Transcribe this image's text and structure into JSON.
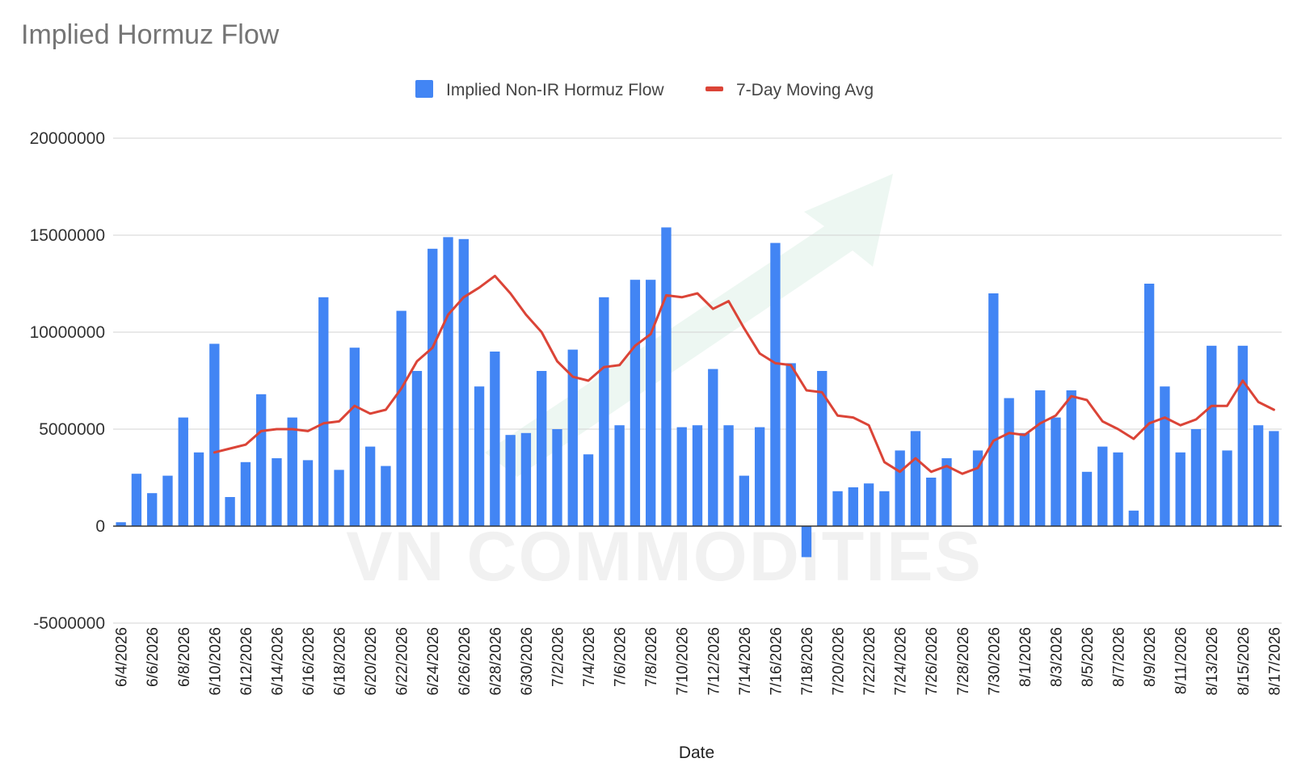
{
  "chart_data": {
    "type": "bar",
    "title": "Implied Hormuz Flow",
    "xlabel": "Date",
    "ylabel": "",
    "ylim": [
      -5000000,
      20000000
    ],
    "yticks": [
      -5000000,
      0,
      5000000,
      10000000,
      15000000,
      20000000
    ],
    "yticklabels": [
      "-5000000",
      "0",
      "5000000",
      "10000000",
      "15000000",
      "20000000"
    ],
    "grid": true,
    "legend_position": "top-center",
    "watermark": "VN COMMODITIES",
    "categories": [
      "6/4/2026",
      "6/5/2026",
      "6/6/2026",
      "6/7/2026",
      "6/8/2026",
      "6/9/2026",
      "6/10/2026",
      "6/11/2026",
      "6/12/2026",
      "6/13/2026",
      "6/14/2026",
      "6/15/2026",
      "6/16/2026",
      "6/17/2026",
      "6/18/2026",
      "6/19/2026",
      "6/20/2026",
      "6/21/2026",
      "6/22/2026",
      "6/23/2026",
      "6/24/2026",
      "6/25/2026",
      "6/26/2026",
      "6/27/2026",
      "6/28/2026",
      "6/29/2026",
      "6/30/2026",
      "7/1/2026",
      "7/2/2026",
      "7/3/2026",
      "7/4/2026",
      "7/5/2026",
      "7/6/2026",
      "7/7/2026",
      "7/8/2026",
      "7/9/2026",
      "7/10/2026",
      "7/11/2026",
      "7/12/2026",
      "7/13/2026",
      "7/14/2026",
      "7/15/2026",
      "7/16/2026",
      "7/17/2026",
      "7/18/2026",
      "7/19/2026",
      "7/20/2026",
      "7/21/2026",
      "7/22/2026",
      "7/23/2026",
      "7/24/2026",
      "7/25/2026",
      "7/26/2026",
      "7/27/2026",
      "7/28/2026",
      "7/29/2026",
      "7/30/2026",
      "7/31/2026",
      "8/1/2026",
      "8/2/2026",
      "8/3/2026",
      "8/4/2026",
      "8/5/2026",
      "8/6/2026",
      "8/7/2026",
      "8/8/2026",
      "8/9/2026",
      "8/10/2026",
      "8/11/2026",
      "8/12/2026",
      "8/13/2026",
      "8/14/2026",
      "8/15/2026",
      "8/16/2026",
      "8/17/2026"
    ],
    "x_tick_labels": [
      "6/4/2026",
      "6/6/2026",
      "6/8/2026",
      "6/10/2026",
      "6/12/2026",
      "6/14/2026",
      "6/16/2026",
      "6/18/2026",
      "6/20/2026",
      "6/22/2026",
      "6/24/2026",
      "6/26/2026",
      "6/28/2026",
      "6/30/2026",
      "7/2/2026",
      "7/4/2026",
      "7/6/2026",
      "7/8/2026",
      "7/10/2026",
      "7/12/2026",
      "7/14/2026",
      "7/16/2026",
      "7/18/2026",
      "7/20/2026",
      "7/22/2026",
      "7/24/2026",
      "7/26/2026",
      "7/28/2026",
      "7/30/2026",
      "8/1/2026",
      "8/3/2026",
      "8/5/2026",
      "8/7/2026",
      "8/9/2026",
      "8/11/2026",
      "8/13/2026",
      "8/15/2026",
      "8/17/2026"
    ],
    "series": [
      {
        "name": "Implied Non-IR Hormuz Flow",
        "type": "bar",
        "color": "#4285f4",
        "values": [
          200000,
          2700000,
          1700000,
          2600000,
          5600000,
          3800000,
          9400000,
          1500000,
          3300000,
          6800000,
          3500000,
          5600000,
          3400000,
          11800000,
          2900000,
          9200000,
          4100000,
          3100000,
          11100000,
          8000000,
          14300000,
          14900000,
          14800000,
          7200000,
          9000000,
          4700000,
          4800000,
          8000000,
          5000000,
          9100000,
          3700000,
          11800000,
          5200000,
          12700000,
          12700000,
          15400000,
          5100000,
          5200000,
          8100000,
          5200000,
          2600000,
          5100000,
          14600000,
          8400000,
          -1600000,
          8000000,
          1800000,
          2000000,
          2200000,
          1800000,
          3900000,
          4900000,
          2500000,
          3500000,
          0,
          3900000,
          12000000,
          6600000,
          4800000,
          7000000,
          5600000,
          7000000,
          2800000,
          4100000,
          3800000,
          800000,
          12500000,
          7200000,
          3800000,
          5000000,
          9300000,
          3900000,
          9300000,
          5200000,
          4900000
        ]
      },
      {
        "name": "7-Day Moving Avg",
        "type": "line",
        "color": "#db4437",
        "values": [
          null,
          null,
          null,
          null,
          null,
          null,
          3800000,
          4000000,
          4200000,
          4900000,
          5000000,
          5000000,
          4900000,
          5300000,
          5400000,
          6200000,
          5800000,
          6000000,
          7100000,
          8500000,
          9200000,
          10900000,
          11800000,
          12300000,
          12900000,
          12000000,
          10900000,
          10000000,
          8500000,
          7700000,
          7500000,
          8200000,
          8300000,
          9300000,
          9900000,
          11900000,
          11800000,
          12000000,
          11200000,
          11600000,
          10200000,
          8900000,
          8400000,
          8300000,
          7000000,
          6900000,
          5700000,
          5600000,
          5200000,
          3300000,
          2800000,
          3500000,
          2800000,
          3100000,
          2700000,
          3000000,
          4400000,
          4800000,
          4700000,
          5300000,
          5700000,
          6700000,
          6500000,
          5400000,
          5000000,
          4500000,
          5300000,
          5600000,
          5200000,
          5500000,
          6200000,
          6200000,
          7500000,
          6400000,
          6000000
        ]
      }
    ]
  }
}
